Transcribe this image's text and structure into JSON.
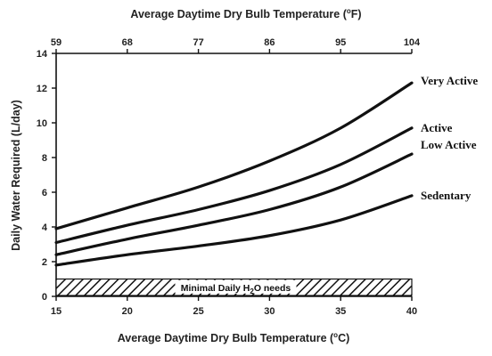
{
  "chart_data": {
    "type": "line",
    "title": "",
    "xlabel": "Average Daytime Dry Bulb Temperature",
    "xlabel_unit": "C",
    "x2label": "Average Daytime Dry Bulb Temperature",
    "x2label_unit": "F",
    "degree_symbol": "o",
    "ylabel": "Daily Water Required (L/day)",
    "xlim": [
      15,
      40
    ],
    "ylim": [
      0,
      14
    ],
    "x_ticks": [
      15,
      20,
      25,
      30,
      35,
      40
    ],
    "x2_ticks": [
      59,
      68,
      77,
      86,
      95,
      104
    ],
    "y_ticks": [
      0,
      2,
      4,
      6,
      8,
      10,
      12,
      14
    ],
    "grid": false,
    "legend": "inline-right",
    "series": [
      {
        "name": "Very Active",
        "x": [
          15,
          20,
          25,
          30,
          35,
          40
        ],
        "values": [
          3.9,
          5.1,
          6.3,
          7.8,
          9.7,
          12.3
        ]
      },
      {
        "name": "Active",
        "x": [
          15,
          20,
          25,
          30,
          35,
          40
        ],
        "values": [
          3.1,
          4.1,
          5.0,
          6.1,
          7.6,
          9.7
        ]
      },
      {
        "name": "Low Active",
        "x": [
          15,
          20,
          25,
          30,
          35,
          40
        ],
        "values": [
          2.4,
          3.3,
          4.1,
          5.0,
          6.3,
          8.2
        ]
      },
      {
        "name": "Sedentary",
        "x": [
          15,
          20,
          25,
          30,
          35,
          40
        ],
        "values": [
          1.8,
          2.4,
          2.9,
          3.5,
          4.4,
          5.8
        ]
      }
    ],
    "band": {
      "label_prefix": "Minimal Daily H",
      "label_subscript": "2",
      "label_suffix": "O needs",
      "y_range": [
        0,
        1
      ],
      "fill": "hatched"
    },
    "colors": {
      "line": "#111111",
      "axis": "#111111",
      "text": "#222222"
    }
  }
}
